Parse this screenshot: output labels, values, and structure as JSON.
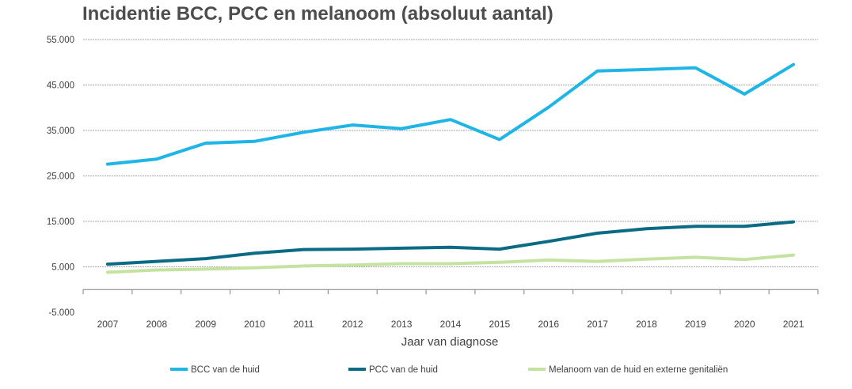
{
  "chart_data": {
    "type": "line",
    "title": "Incidentie BCC, PCC en melanoom (absoluut aantal)",
    "xlabel": "Jaar van diagnose",
    "ylabel": "",
    "categories": [
      "2007",
      "2008",
      "2009",
      "2010",
      "2011",
      "2012",
      "2013",
      "2014",
      "2015",
      "2016",
      "2017",
      "2018",
      "2019",
      "2020",
      "2021"
    ],
    "ylim": [
      -5000,
      55000
    ],
    "yticks": [
      -5000,
      5000,
      15000,
      25000,
      35000,
      45000,
      55000
    ],
    "ytick_labels": [
      "-5.000",
      "5.000",
      "15.000",
      "25.000",
      "35.000",
      "45.000",
      "55.000"
    ],
    "grid": true,
    "legend_position": "bottom",
    "series": [
      {
        "name": "BCC van de huid",
        "color": "#1fb5e6",
        "values": [
          27600,
          28700,
          32200,
          32600,
          34600,
          36200,
          35400,
          37400,
          33000,
          40100,
          48100,
          48400,
          48800,
          43000,
          49500
        ]
      },
      {
        "name": "PCC van de huid",
        "color": "#0b6a84",
        "values": [
          5600,
          6200,
          6800,
          8000,
          8800,
          8900,
          9100,
          9300,
          8900,
          10600,
          12400,
          13400,
          13900,
          13900,
          14900
        ]
      },
      {
        "name": "Melanoom van de huid en externe genitaliën",
        "color": "#c5e3a0",
        "values": [
          3800,
          4300,
          4500,
          4800,
          5200,
          5400,
          5700,
          5700,
          6000,
          6500,
          6200,
          6700,
          7100,
          6600,
          7600
        ]
      }
    ]
  }
}
